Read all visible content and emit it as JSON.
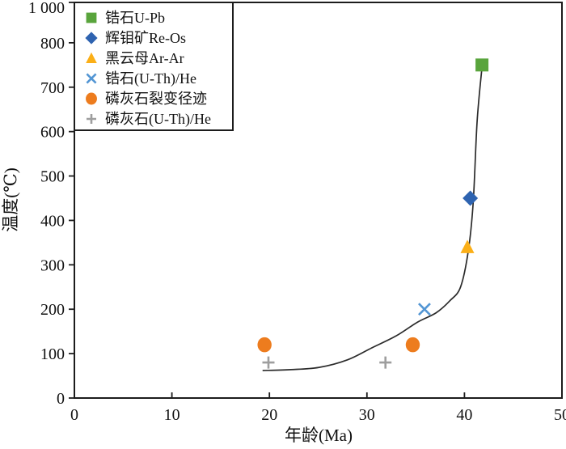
{
  "figure": {
    "background": "#ffffff",
    "axis_color": "#1c1c1c"
  },
  "chart_data": {
    "type": "scatter",
    "title": "",
    "xlabel": "年龄(Ma)",
    "ylabel": "温度(℃)",
    "xlim": [
      0,
      50
    ],
    "ylim": [
      0,
      1000
    ],
    "grid": false,
    "legend_position": "upper-left",
    "x_ticks": [
      0,
      10,
      20,
      30,
      40,
      50
    ],
    "y_ticks": [
      0,
      100,
      200,
      300,
      400,
      500,
      600,
      700,
      800,
      1000
    ],
    "y_tick_labels": [
      "0",
      "100",
      "200",
      "300",
      "400",
      "500",
      "600",
      "700",
      "800",
      "1 000"
    ],
    "series": [
      {
        "name": "锆石U-Pb",
        "marker": "square",
        "color": "#59A43C",
        "points": [
          [
            41.8,
            750
          ]
        ]
      },
      {
        "name": "辉钼矿Re-Os",
        "marker": "diamond",
        "color": "#2E63B0",
        "points": [
          [
            40.6,
            450
          ]
        ]
      },
      {
        "name": "黑云母Ar-Ar",
        "marker": "triangle",
        "color": "#FBAF17",
        "points": [
          [
            40.3,
            340
          ]
        ]
      },
      {
        "name": "锆石(U-Th)/He",
        "marker": "x",
        "color": "#5396D4",
        "points": [
          [
            35.9,
            200
          ]
        ]
      },
      {
        "name": "磷灰石裂变径迹",
        "marker": "circle",
        "color": "#ED7C1E",
        "points": [
          [
            19.5,
            120
          ],
          [
            34.7,
            120
          ]
        ]
      },
      {
        "name": "磷灰石(U-Th)/He",
        "marker": "plus",
        "color": "#9E9E9E",
        "points": [
          [
            19.9,
            80
          ],
          [
            31.9,
            80
          ]
        ]
      }
    ],
    "cooling_curve": {
      "color": "#2b2b2b",
      "points": [
        [
          19.3,
          62
        ],
        [
          22.2,
          64
        ],
        [
          25.1,
          69
        ],
        [
          28.0,
          86
        ],
        [
          30.5,
          113
        ],
        [
          33.0,
          140
        ],
        [
          35.2,
          171
        ],
        [
          37.1,
          192
        ],
        [
          38.5,
          219
        ],
        [
          39.6,
          250
        ],
        [
          40.4,
          332
        ],
        [
          40.9,
          441
        ],
        [
          41.3,
          623
        ],
        [
          41.8,
          745
        ]
      ]
    }
  }
}
